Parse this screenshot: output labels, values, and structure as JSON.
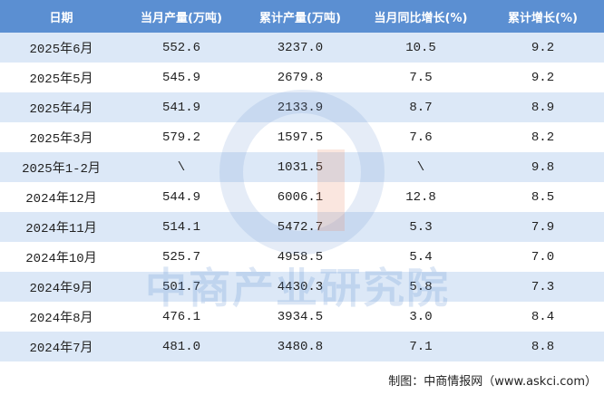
{
  "table": {
    "header": [
      "日期",
      "当月产量(万吨)",
      "累计产量(万吨)",
      "当月同比增长(%)",
      "累计增长(%)"
    ],
    "rows": [
      [
        "2025年6月",
        "552.6",
        "3237.0",
        "10.5",
        "9.2"
      ],
      [
        "2025年5月",
        "545.9",
        "2679.8",
        "7.5",
        "9.2"
      ],
      [
        "2025年4月",
        "541.9",
        "2133.9",
        "8.7",
        "8.9"
      ],
      [
        "2025年3月",
        "579.2",
        "1597.5",
        "7.6",
        "8.2"
      ],
      [
        "2025年1-2月",
        "\\",
        "1031.5",
        "\\",
        "9.8"
      ],
      [
        "2024年12月",
        "544.9",
        "6006.1",
        "12.8",
        "8.5"
      ],
      [
        "2024年11月",
        "514.1",
        "5472.7",
        "5.3",
        "7.9"
      ],
      [
        "2024年10月",
        "525.7",
        "4958.5",
        "5.4",
        "7.0"
      ],
      [
        "2024年9月",
        "501.7",
        "4430.3",
        "5.8",
        "7.3"
      ],
      [
        "2024年8月",
        "476.1",
        "3934.5",
        "3.0",
        "8.4"
      ],
      [
        "2024年7月",
        "481.0",
        "3480.8",
        "7.1",
        "8.8"
      ]
    ]
  },
  "watermark": "中商产业研究院",
  "footer": "制图：中商情报网（www.askci.com）"
}
